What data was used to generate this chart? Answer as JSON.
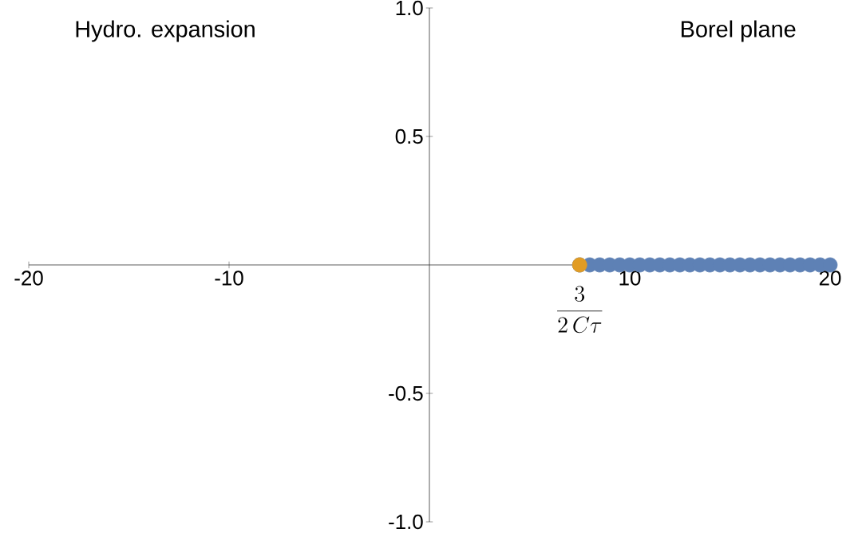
{
  "chart_data": {
    "type": "scatter",
    "annotations": [
      "Hydro. expansion",
      "Borel plane",
      "\\frac{3}{2\\,C\\tau}"
    ],
    "series": [
      {
        "color": "#5e81b5",
        "x": [
          7.5,
          8,
          8.5,
          9,
          9.5,
          10,
          10.5,
          11,
          11.5,
          12,
          12.5,
          13,
          13.5,
          14,
          14.5,
          15,
          15.5,
          16,
          16.5,
          17,
          17.5,
          18,
          18.5,
          19,
          19.5,
          20
        ],
        "values": [
          0,
          0,
          0,
          0,
          0,
          0,
          0,
          0,
          0,
          0,
          0,
          0,
          0,
          0,
          0,
          0,
          0,
          0,
          0,
          0,
          0,
          0,
          0,
          0,
          0,
          0
        ]
      },
      {
        "color": "#e19c24",
        "x": [
          7.5
        ],
        "values": [
          0
        ]
      }
    ],
    "marker": "circle",
    "xlim": [
      -20,
      20
    ],
    "ylim": [
      -1,
      1
    ],
    "xticks": [
      -20,
      -10,
      10,
      20
    ],
    "yticks": [
      {
        "value": -1,
        "label": "-1.0"
      },
      {
        "value": -0.5,
        "label": "-0.5"
      },
      {
        "value": 0.5,
        "label": "0.5"
      },
      {
        "value": 1,
        "label": "1.0"
      }
    ]
  }
}
